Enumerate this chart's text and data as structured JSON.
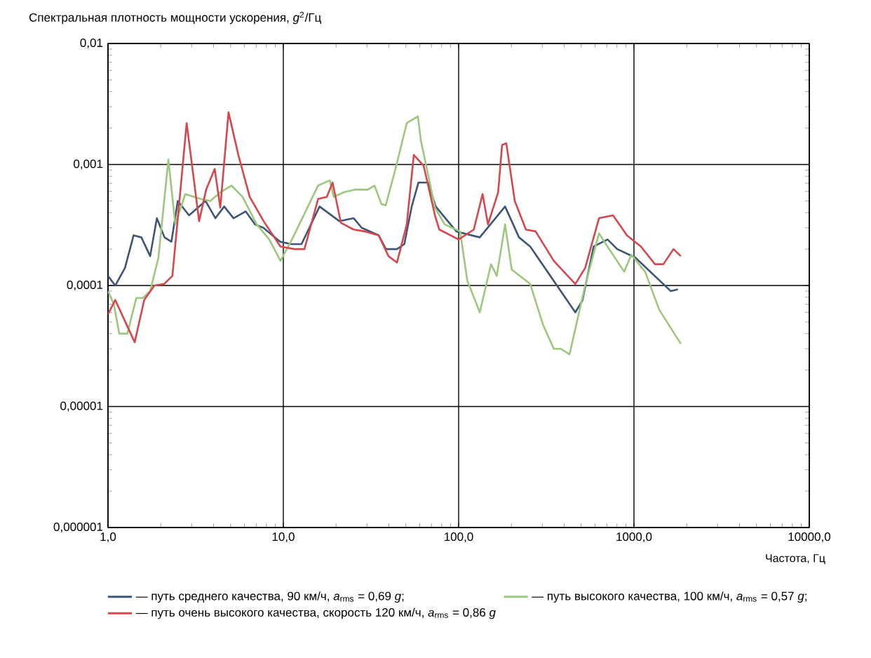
{
  "chart_data": {
    "type": "line",
    "ylabel": "Спектральная плотность мощности ускорения, *g*$^{2}$/Гц",
    "xlabel": "Частота, Гц",
    "log": "xy",
    "grid": true,
    "legend": "bottom",
    "marker": "none",
    "line_style": "solid",
    "xlim": [
      1,
      10000
    ],
    "ylim": [
      1e-06,
      0.01
    ],
    "xticks": [
      {
        "value": 1,
        "label": "1,0"
      },
      {
        "value": 10,
        "label": "10,0"
      },
      {
        "value": 100,
        "label": "100,0"
      },
      {
        "value": 1000,
        "label": "1000,0"
      },
      {
        "value": 10000,
        "label": "10000,0"
      }
    ],
    "yticks": [
      {
        "value": 1e-06,
        "label": "0,000001"
      },
      {
        "value": 1e-05,
        "label": "0,00001"
      },
      {
        "value": 0.0001,
        "label": "0,0001"
      },
      {
        "value": 0.001,
        "label": "0,001"
      },
      {
        "value": 0.01,
        "label": "0,01"
      }
    ],
    "series": [
      {
        "name": "— путь среднего качества, 90 км/ч, *a*$_{rms}$ = 0,69 *g*;",
        "color": "#3d5577",
        "x": [
          1.0,
          1.1,
          1.25,
          1.4,
          1.55,
          1.74,
          1.9,
          2.1,
          2.3,
          2.5,
          2.9,
          3.6,
          4.1,
          4.6,
          5.2,
          6.1,
          6.9,
          7.7,
          9.6,
          11.1,
          12.7,
          16.1,
          20.9,
          25.2,
          28,
          35,
          38.5,
          44.5,
          49,
          54,
          59,
          67,
          74,
          97,
          132,
          184,
          221,
          256,
          463,
          508,
          589,
          707,
          803,
          1019,
          1620,
          1780
        ],
        "values": [
          0.00012,
          0.0001,
          0.00014,
          0.00026,
          0.00025,
          0.000175,
          0.00036,
          0.00025,
          0.00023,
          0.0005,
          0.00038,
          0.0005,
          0.00036,
          0.00045,
          0.00036,
          0.00041,
          0.00032,
          0.0003,
          0.00023,
          0.00022,
          0.00022,
          0.00045,
          0.00034,
          0.00036,
          0.0003,
          0.00026,
          0.0002,
          0.0002,
          0.00022,
          0.00045,
          0.00071,
          0.00071,
          0.00045,
          0.00028,
          0.00025,
          0.00045,
          0.00025,
          0.00021,
          6e-05,
          7.5e-05,
          0.00021,
          0.00024,
          0.0002,
          0.00017,
          9e-05,
          9.3e-05
        ]
      },
      {
        "name": "— путь высокого качества, 100 км/ч, *a*$_{rms}$ = 0,57 *g*;",
        "color": "#9cc77c",
        "x": [
          1.0,
          1.08,
          1.16,
          1.29,
          1.45,
          1.58,
          1.74,
          1.94,
          2.21,
          2.42,
          2.76,
          3.37,
          3.84,
          4.37,
          5.06,
          5.86,
          7.05,
          8.32,
          9.63,
          11.2,
          13.4,
          15.8,
          18.4,
          19.4,
          22.2,
          25.7,
          30.3,
          33.1,
          36.3,
          38.4,
          43.7,
          50.6,
          58.6,
          60.8,
          73.3,
          83.2,
          102,
          112,
          132,
          153,
          165,
          184,
          201,
          256,
          302,
          349,
          383,
          429,
          527,
          632,
          692,
          880,
          966,
          1158,
          1394,
          1850
        ],
        "values": [
          9e-05,
          7e-05,
          4e-05,
          4e-05,
          7.9e-05,
          7.9e-05,
          9e-05,
          0.00017,
          0.0011,
          0.00032,
          0.00057,
          0.00052,
          0.0005,
          0.00059,
          0.00067,
          0.00054,
          0.00032,
          0.00024,
          0.00016,
          0.00024,
          0.00041,
          0.00067,
          0.00074,
          0.00054,
          0.00059,
          0.00062,
          0.00062,
          0.00067,
          0.00047,
          0.00046,
          0.00093,
          0.0022,
          0.0025,
          0.0016,
          0.00044,
          0.00032,
          0.00028,
          0.00011,
          6e-05,
          0.00015,
          0.00012,
          0.00032,
          0.000135,
          0.000103,
          4.8e-05,
          3e-05,
          3e-05,
          2.7e-05,
          0.0001,
          0.00027,
          0.00022,
          0.00013,
          0.00018,
          0.00013,
          6.3e-05,
          3.3e-05
        ]
      },
      {
        "name": "— путь очень высокого качества, скорость 120 км/ч, *a*$_{rms}$ = 0,86 *g*",
        "color": "#d6474d",
        "x": [
          1.0,
          1.1,
          1.42,
          1.61,
          1.84,
          2.09,
          2.33,
          2.81,
          3.31,
          3.63,
          4.06,
          4.37,
          4.87,
          5.54,
          6.43,
          7.73,
          9.63,
          11.6,
          13.2,
          15.8,
          17.7,
          19.1,
          21.3,
          25.2,
          29.2,
          35.0,
          39.8,
          44.5,
          50.6,
          55.5,
          63.1,
          73.3,
          77.6,
          100,
          122,
          137,
          147,
          168,
          177,
          187,
          209,
          242,
          275,
          349,
          463,
          527,
          632,
          760,
          912,
          1096,
          1318,
          1472,
          1680,
          1850
        ],
        "values": [
          5.8e-05,
          7.6e-05,
          3.4e-05,
          7.6e-05,
          0.0001,
          0.000103,
          0.00012,
          0.0022,
          0.00034,
          0.00062,
          0.00092,
          0.00044,
          0.0027,
          0.0012,
          0.00054,
          0.00034,
          0.00021,
          0.0002,
          0.0002,
          0.00052,
          0.00054,
          0.00071,
          0.00033,
          0.00029,
          0.00028,
          0.00026,
          0.000175,
          0.000155,
          0.00032,
          0.0012,
          0.00098,
          0.00038,
          0.00029,
          0.00024,
          0.00029,
          0.00057,
          0.00032,
          0.00059,
          0.00145,
          0.0015,
          0.0005,
          0.00029,
          0.00028,
          0.00016,
          0.000103,
          0.00014,
          0.00036,
          0.00038,
          0.00026,
          0.00021,
          0.00015,
          0.00015,
          0.0002,
          0.000175
        ]
      }
    ]
  }
}
